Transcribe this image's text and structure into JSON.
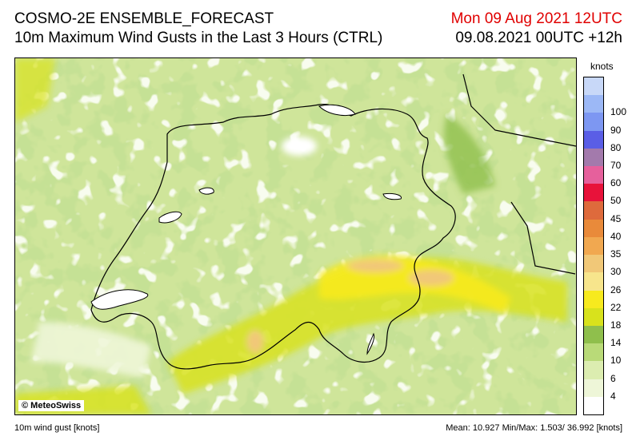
{
  "header": {
    "model": "COSMO-2E ENSEMBLE_FORECAST",
    "description": "10m Maximum Wind Gusts in the Last 3 Hours (CTRL)",
    "valid_time": "Mon 09 Aug 2021 12UTC",
    "run_time": "09.08.2021 00UTC +12h"
  },
  "map": {
    "copyright": "© MeteoSwiss"
  },
  "legend": {
    "unit": "knots",
    "classes": [
      {
        "label": "",
        "color": "#ffffff"
      },
      {
        "label": "4",
        "color": "#eef6d8"
      },
      {
        "label": "6",
        "color": "#dcedb0"
      },
      {
        "label": "10",
        "color": "#b9da78"
      },
      {
        "label": "14",
        "color": "#8fbf4c"
      },
      {
        "label": "18",
        "color": "#d8e21c"
      },
      {
        "label": "22",
        "color": "#f7ea1e"
      },
      {
        "label": "26",
        "color": "#f7e58c"
      },
      {
        "label": "30",
        "color": "#f1c878"
      },
      {
        "label": "35",
        "color": "#f1a850"
      },
      {
        "label": "40",
        "color": "#e98a3a"
      },
      {
        "label": "45",
        "color": "#de6a3c"
      },
      {
        "label": "50",
        "color": "#e8123a"
      },
      {
        "label": "60",
        "color": "#e6609c"
      },
      {
        "label": "70",
        "color": "#a37aac"
      },
      {
        "label": "80",
        "color": "#5a5ee6"
      },
      {
        "label": "90",
        "color": "#7d97f2"
      },
      {
        "label": "100",
        "color": "#9cb8f6"
      },
      {
        "label": "",
        "color": "#c8d8f8"
      }
    ]
  },
  "footer": {
    "variable": "10m wind gust [knots]",
    "stats": "Mean:  10.927 Min/Max:   1.503/ 36.992 [knots]"
  }
}
